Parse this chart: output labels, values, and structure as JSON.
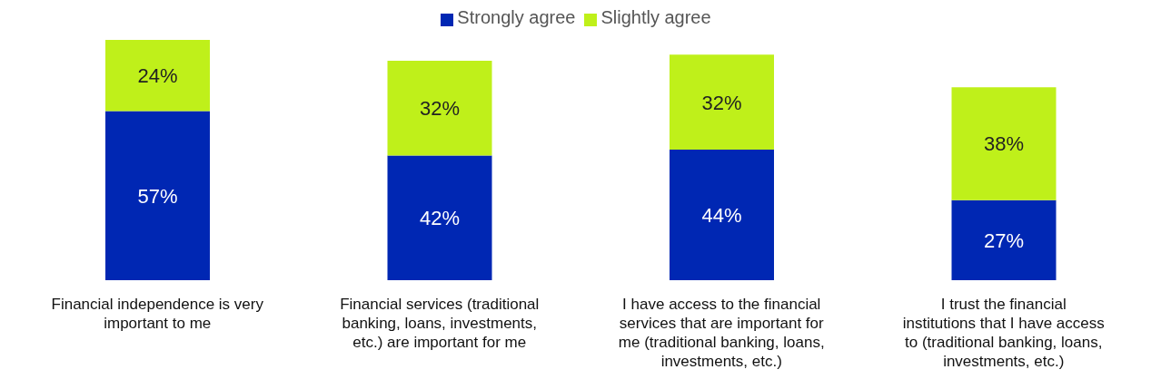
{
  "chart_data": {
    "type": "bar",
    "stacked": true,
    "legend": "top",
    "grid": false,
    "categories": [
      "Financial independence is very important to me",
      "Financial services (traditional banking, loans, investments, etc.) are important for me",
      "I have access to the financial services that are important for me (traditional banking, loans, investments, etc.)",
      "I trust the financial institutions that I have access to (traditional banking, loans, investments, etc.)"
    ],
    "series": [
      {
        "name": "Strongly agree",
        "color": "#0027b3",
        "values": [
          57,
          42,
          44,
          27
        ],
        "value_labels": [
          "57%",
          "42%",
          "44%",
          "27%"
        ]
      },
      {
        "name": "Slightly agree",
        "color": "#bff01a",
        "values": [
          24,
          32,
          32,
          38
        ],
        "value_labels": [
          "24%",
          "32%",
          "32%",
          "38%"
        ]
      }
    ]
  }
}
